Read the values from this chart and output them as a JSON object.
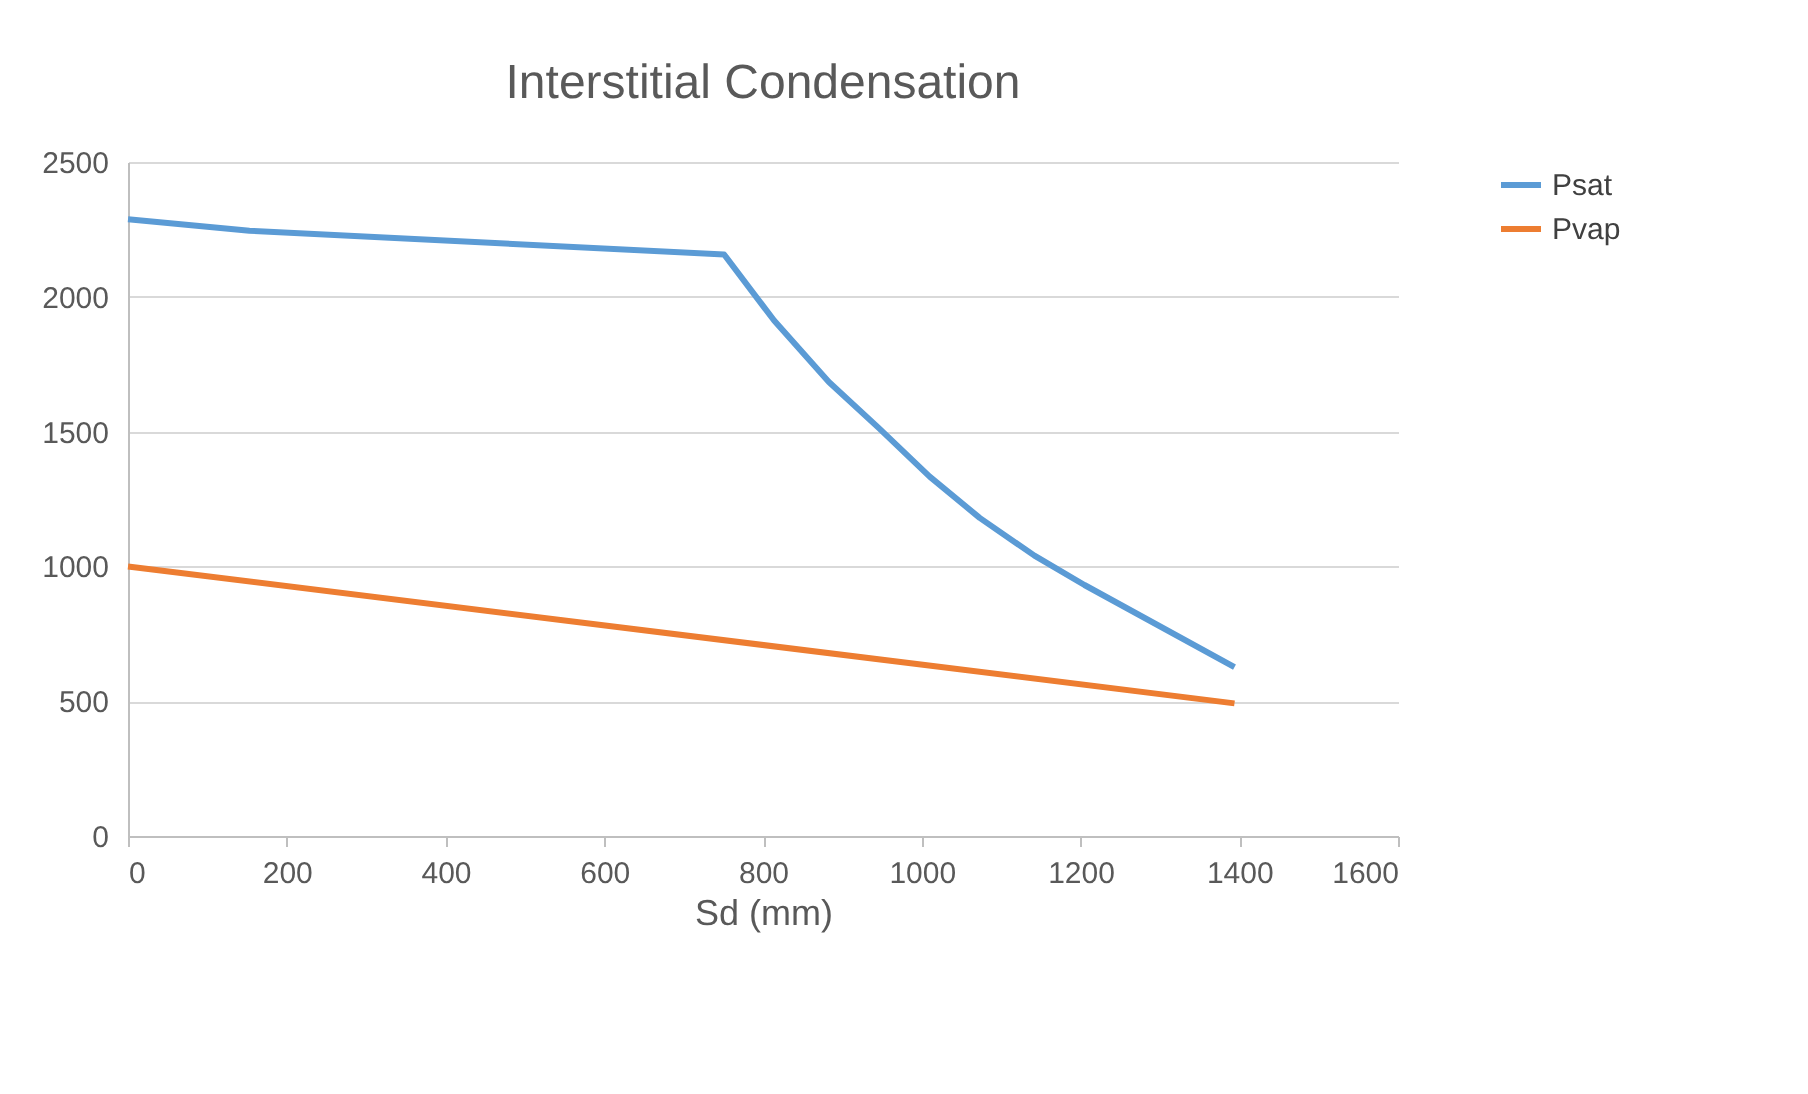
{
  "chart_data": {
    "type": "line",
    "title": "Interstitial Condensation",
    "xlabel": "Sd (mm)",
    "series": [
      {
        "name": "Psat",
        "color": "#5b9bd5",
        "x": [
          0,
          153,
          751,
          814,
          883,
          946,
          1010,
          1073,
          1142,
          1205,
          1394
        ],
        "values": [
          2288,
          2245,
          2157,
          1912,
          1684,
          1513,
          1333,
          1180,
          1040,
          931,
          626
        ]
      },
      {
        "name": "Pvap",
        "color": "#ed7d31",
        "x": [
          0,
          1394
        ],
        "values": [
          1000,
          492
        ]
      }
    ],
    "xlim": [
      0,
      1600
    ],
    "xticks": [
      0,
      200,
      400,
      600,
      800,
      1000,
      1200,
      1400,
      1600
    ],
    "ylim": [
      0,
      2500
    ],
    "yticks": [
      0,
      500,
      1000,
      1500,
      2000,
      2500
    ],
    "grid": "y",
    "legend": "right",
    "marker": "none",
    "line_style": "solid"
  }
}
